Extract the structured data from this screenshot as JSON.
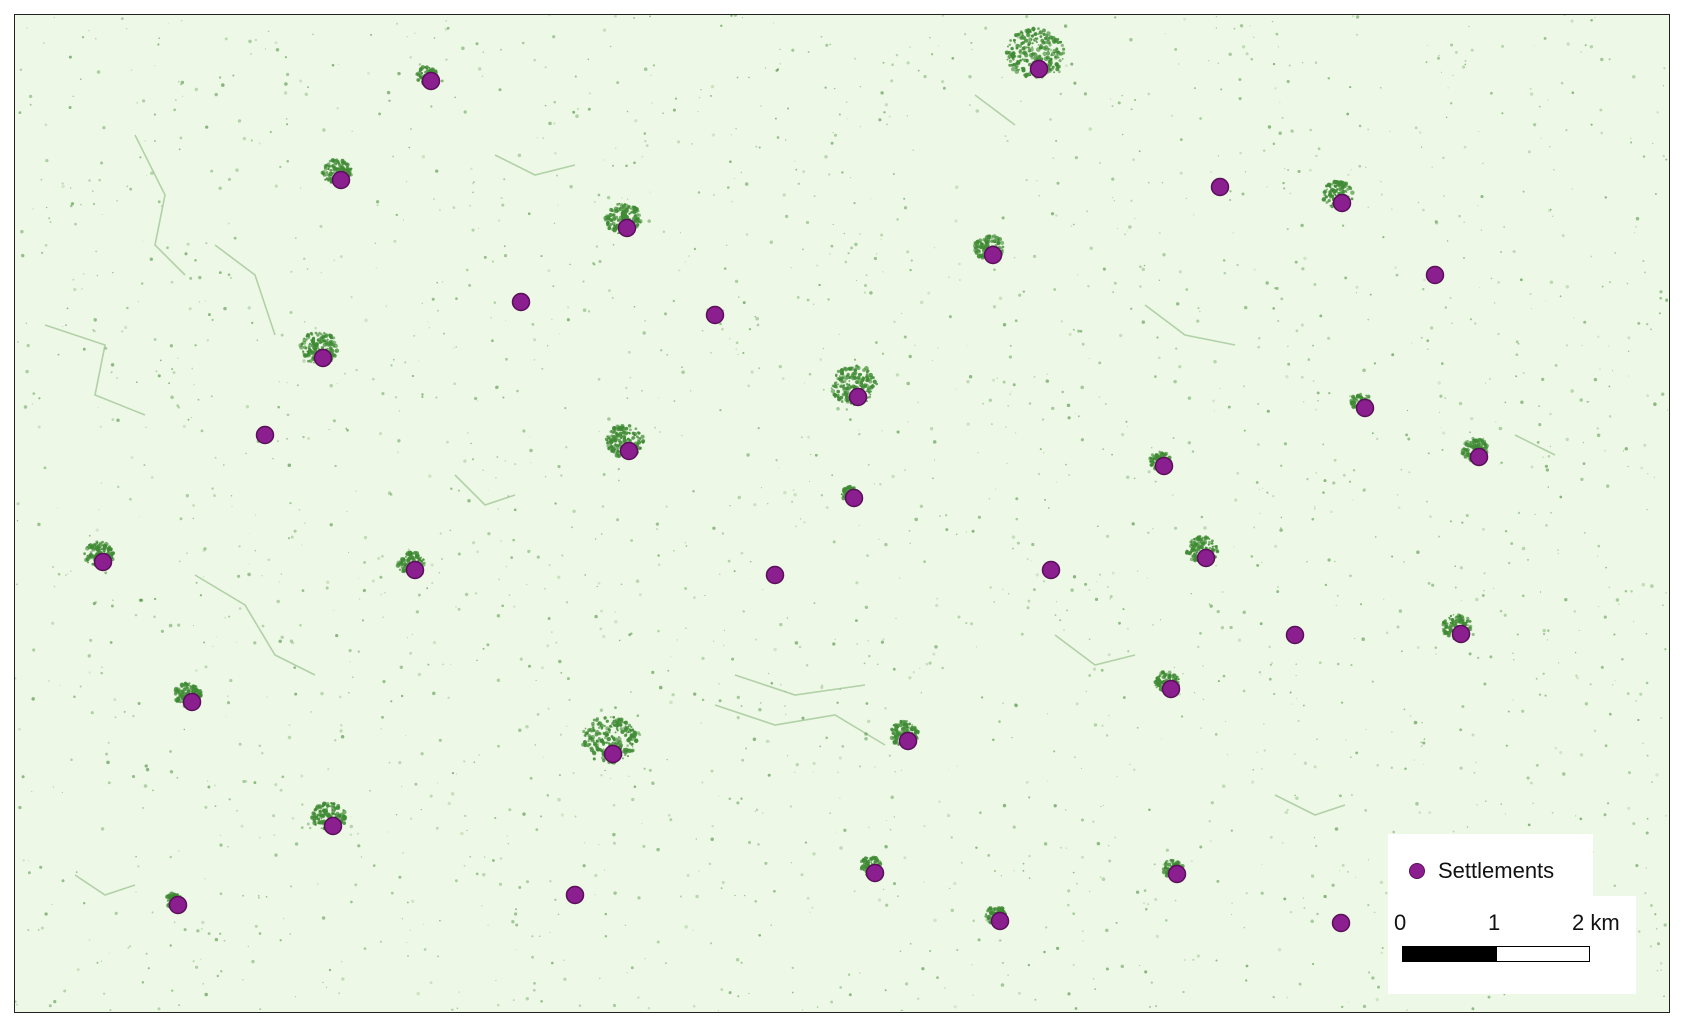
{
  "colors": {
    "background": "#eef8e6",
    "vegetation": "#3f8a34",
    "settlement_fill": "#8b1f8f",
    "settlement_stroke": "#5a0f5a",
    "frame": "#222222"
  },
  "legend": {
    "label": "Settlements",
    "marker_icon": "circle-marker-icon"
  },
  "scalebar": {
    "labels": [
      "0",
      "1",
      "2 km"
    ],
    "max_km": 2
  },
  "settlement_count": 37
}
